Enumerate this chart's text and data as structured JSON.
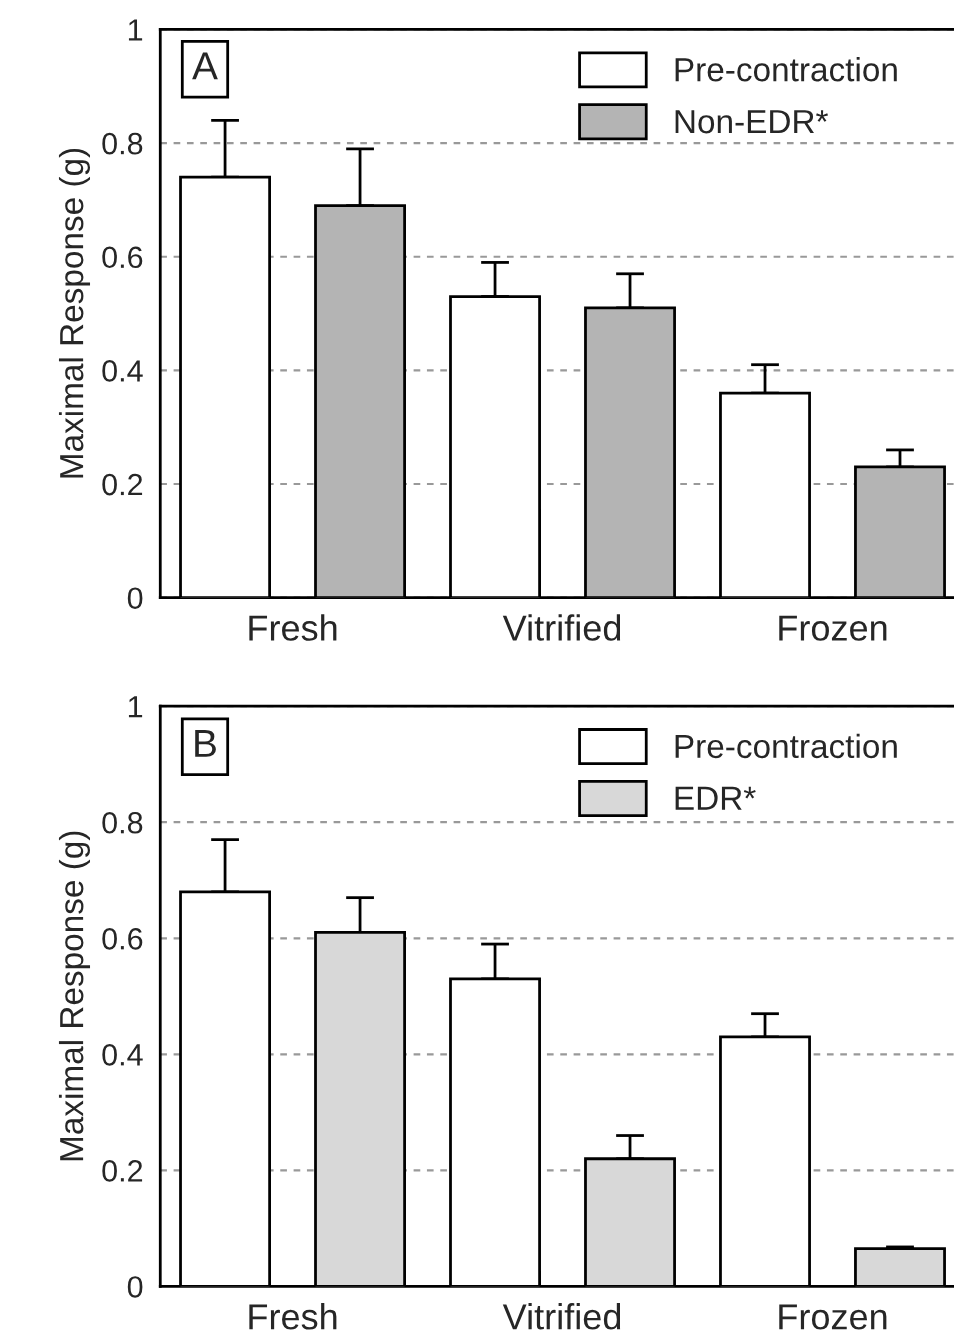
{
  "chart_data": [
    {
      "type": "bar",
      "categories": [
        "Fresh",
        "Vitrified",
        "Frozen"
      ],
      "ylabel": "Maximal Response (g)",
      "annotations": [
        "A"
      ],
      "series": [
        {
          "name": "Pre-contraction",
          "color": "#ffffff",
          "values": [
            0.74,
            0.53,
            0.36
          ],
          "errors": [
            [
              0.74,
              0.84
            ],
            [
              0.53,
              0.59
            ],
            [
              0.36,
              0.41
            ]
          ]
        },
        {
          "name": "Non-EDR*",
          "color": "#b4b4b4",
          "values": [
            0.69,
            0.51,
            0.23
          ],
          "errors": [
            [
              0.69,
              0.79
            ],
            [
              0.51,
              0.57
            ],
            [
              0.23,
              0.26
            ]
          ]
        }
      ],
      "ylim": [
        0,
        1
      ],
      "yticks": [
        0,
        0.2,
        0.4,
        0.6,
        0.8,
        1
      ],
      "grid": "y",
      "legend": "top right"
    },
    {
      "type": "bar",
      "categories": [
        "Fresh",
        "Vitrified",
        "Frozen"
      ],
      "ylabel": "Maximal Response (g)",
      "annotations": [
        "B"
      ],
      "series": [
        {
          "name": "Pre-contraction",
          "color": "#ffffff",
          "values": [
            0.68,
            0.53,
            0.43
          ],
          "errors": [
            [
              0.68,
              0.77
            ],
            [
              0.53,
              0.59
            ],
            [
              0.43,
              0.47
            ]
          ]
        },
        {
          "name": "EDR*",
          "color": "#d8d8d8",
          "values": [
            0.61,
            0.22,
            0.065
          ],
          "errors": [
            [
              0.61,
              0.67
            ],
            [
              0.22,
              0.26
            ],
            [
              0.065,
              0.068
            ]
          ]
        }
      ],
      "ylim": [
        0,
        1
      ],
      "yticks": [
        0,
        0.2,
        0.4,
        0.6,
        0.8,
        1
      ],
      "grid": "y",
      "legend": "top right"
    }
  ]
}
